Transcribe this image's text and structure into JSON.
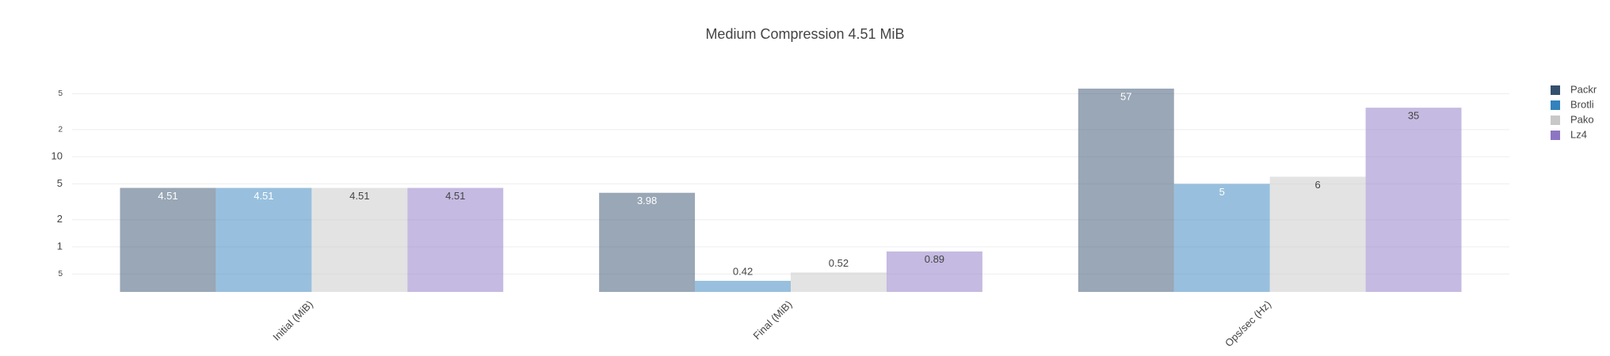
{
  "chart_data": {
    "type": "bar",
    "title": "Medium Compression 4.51 MiB",
    "categories": [
      "Initial (MiB)",
      "Final (MiB)",
      "Ops/sec (Hz)"
    ],
    "series": [
      {
        "name": "Packr",
        "color": "#34506e",
        "values": [
          4.51,
          3.98,
          57
        ]
      },
      {
        "name": "Brotli",
        "color": "#3182bd",
        "values": [
          4.51,
          0.42,
          5
        ]
      },
      {
        "name": "Pako",
        "color": "#c8c8c8",
        "values": [
          4.51,
          0.52,
          6
        ]
      },
      {
        "name": "Lz4",
        "color": "#8c76c4",
        "values": [
          4.51,
          0.89,
          35
        ]
      }
    ],
    "log_scale": true,
    "ylim": [
      0.3162,
      63.1
    ],
    "yticks": [
      {
        "value": 0.5,
        "label": "5"
      },
      1,
      2,
      5,
      10,
      {
        "value": 20,
        "label": "2"
      },
      {
        "value": 50,
        "label": "5"
      }
    ],
    "grid": true,
    "legend": "right"
  }
}
